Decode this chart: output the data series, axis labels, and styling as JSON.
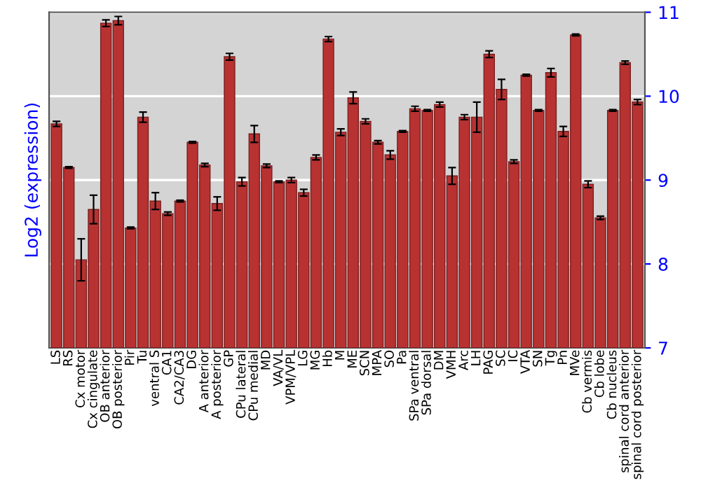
{
  "chart_data": {
    "type": "bar",
    "ylabel": "Log2 (expression)",
    "categories": [
      "LS",
      "RS",
      "Cx motor",
      "Cx cingulate",
      "OB anterior",
      "OB posterior",
      "Pir",
      "Tu",
      "ventral S",
      "CA1",
      "CA2/CA3",
      "DG",
      "A anterior",
      "A posterior",
      "GP",
      "CPu lateral",
      "CPu medial",
      "MD",
      "VA/VL",
      "VPM/VPL",
      "LG",
      "MG",
      "Hb",
      "M",
      "ME",
      "SCN",
      "MPA",
      "SO",
      "Pa",
      "SPa ventral",
      "SPa dorsal",
      "DM",
      "VMH",
      "Arc",
      "LH",
      "PAG",
      "SC",
      "IC",
      "VTA",
      "SN",
      "Tg",
      "Pn",
      "MVe",
      "Cb vermis",
      "Cb lobe",
      "Cb nucleus",
      "spinal cord anterior",
      "spinal cord posterior"
    ],
    "values": [
      9.67,
      9.15,
      8.05,
      8.65,
      10.87,
      10.9,
      8.43,
      9.75,
      8.75,
      8.6,
      8.75,
      9.45,
      9.18,
      8.72,
      10.47,
      8.98,
      9.55,
      9.17,
      8.98,
      9.0,
      8.85,
      9.27,
      10.68,
      9.57,
      9.98,
      9.7,
      9.45,
      9.3,
      9.58,
      9.85,
      9.83,
      9.9,
      9.05,
      9.75,
      9.75,
      10.5,
      10.08,
      9.22,
      10.25,
      9.83,
      10.28,
      9.58,
      10.73,
      8.95,
      8.55,
      9.83,
      10.4,
      9.93
    ],
    "errors": [
      0.03,
      0.01,
      0.25,
      0.17,
      0.04,
      0.05,
      0.01,
      0.06,
      0.1,
      0.02,
      0.01,
      0.01,
      0.02,
      0.08,
      0.04,
      0.05,
      0.1,
      0.02,
      0.01,
      0.03,
      0.04,
      0.03,
      0.03,
      0.04,
      0.07,
      0.03,
      0.02,
      0.05,
      0.01,
      0.03,
      0.01,
      0.03,
      0.1,
      0.03,
      0.18,
      0.04,
      0.12,
      0.02,
      0.01,
      0.01,
      0.05,
      0.06,
      0.01,
      0.04,
      0.02,
      0.01,
      0.02,
      0.03
    ],
    "color": "#b83232",
    "ylim": [
      7,
      11
    ],
    "yticks": [
      7,
      8,
      9,
      10,
      11
    ],
    "grid": "y"
  }
}
